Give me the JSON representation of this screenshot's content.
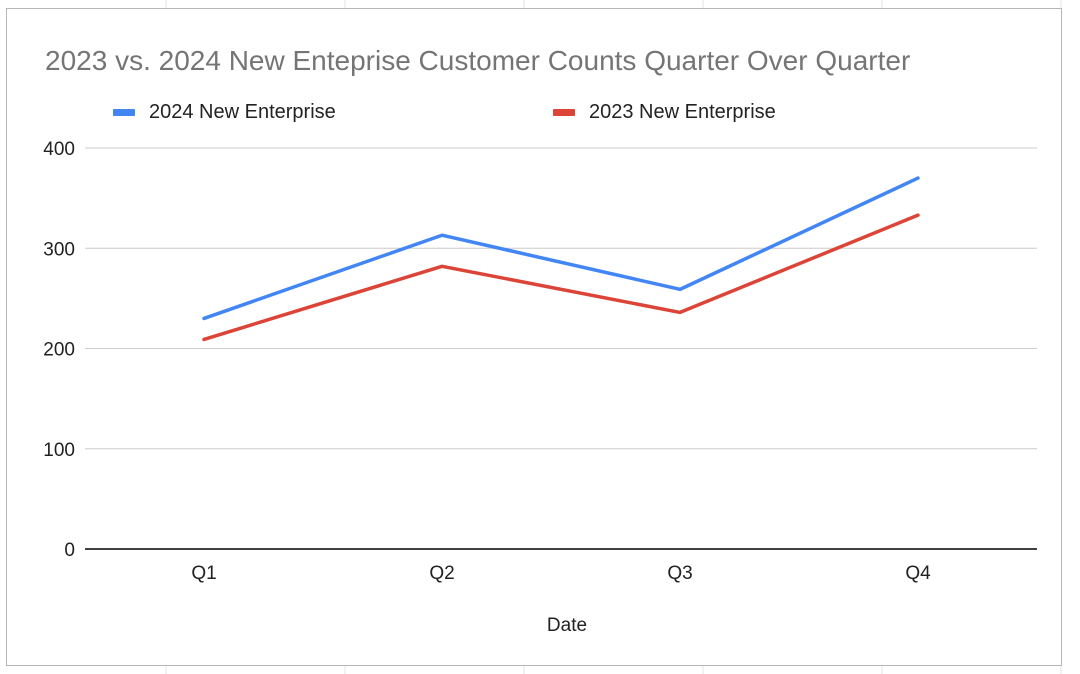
{
  "colors": {
    "series_2024": "#4285f4",
    "series_2023": "#db4437",
    "gridline": "#cccccc",
    "baseline": "#000000",
    "title": "#757575",
    "text": "#222222"
  },
  "chart_data": {
    "type": "line",
    "title": "2023 vs. 2024 New Enteprise Customer Counts Quarter Over Quarter",
    "xlabel": "Date",
    "ylabel": "",
    "categories": [
      "Q1",
      "Q2",
      "Q3",
      "Q4"
    ],
    "series": [
      {
        "name": "2024 New Enterprise",
        "values": [
          230,
          313,
          259,
          370
        ]
      },
      {
        "name": "2023 New Enterprise",
        "values": [
          209,
          282,
          236,
          333
        ]
      }
    ],
    "ylim": [
      0,
      400
    ],
    "yticks": [
      "0",
      "100",
      "200",
      "300",
      "400"
    ],
    "grid": true,
    "legend_position": "top"
  }
}
